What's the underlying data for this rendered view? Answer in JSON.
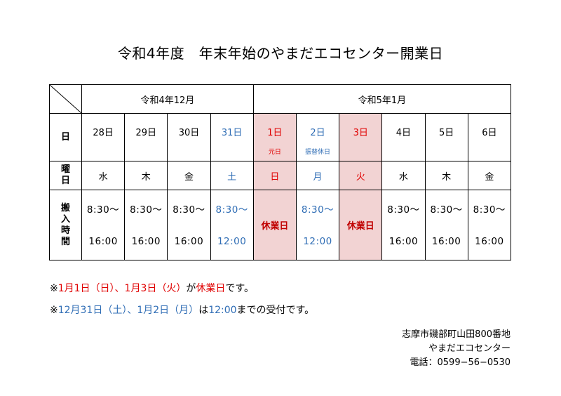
{
  "title": "令和4年度　年末年始のやまだエコセンター開業日",
  "months": [
    "令和4年12月",
    "令和5年1月"
  ],
  "row_labels": {
    "date": "日",
    "dow": "曜日",
    "time": "搬入時間"
  },
  "days": [
    {
      "date": "28日",
      "note": "",
      "dow": "水",
      "time_start": "8:30〜",
      "time_end": "16:00",
      "closed": false,
      "color": "black"
    },
    {
      "date": "29日",
      "note": "",
      "dow": "木",
      "time_start": "8:30〜",
      "time_end": "16:00",
      "closed": false,
      "color": "black"
    },
    {
      "date": "30日",
      "note": "",
      "dow": "金",
      "time_start": "8:30〜",
      "time_end": "16:00",
      "closed": false,
      "color": "black"
    },
    {
      "date": "31日",
      "note": "",
      "dow": "土",
      "time_start": "8:30〜",
      "time_end": "12:00",
      "closed": false,
      "color": "blue"
    },
    {
      "date": "1日",
      "note": "元日",
      "dow": "日",
      "closed_label": "休業日",
      "closed": true,
      "color": "red"
    },
    {
      "date": "2日",
      "note": "振替休日",
      "dow": "月",
      "time_start": "8:30〜",
      "time_end": "12:00",
      "closed": false,
      "color": "blue"
    },
    {
      "date": "3日",
      "note": "",
      "dow": "火",
      "closed_label": "休業日",
      "closed": true,
      "color": "red"
    },
    {
      "date": "4日",
      "note": "",
      "dow": "水",
      "time_start": "8:30〜",
      "time_end": "16:00",
      "closed": false,
      "color": "black"
    },
    {
      "date": "5日",
      "note": "",
      "dow": "木",
      "time_start": "8:30〜",
      "time_end": "16:00",
      "closed": false,
      "color": "black"
    },
    {
      "date": "6日",
      "note": "",
      "dow": "金",
      "time_start": "8:30〜",
      "time_end": "16:00",
      "closed": false,
      "color": "black"
    }
  ],
  "notes": {
    "note1": {
      "mark": "※",
      "dates": "1月1日（日）、1月3日（火）",
      "mid": "が",
      "closed": "休業日",
      "end": "です。"
    },
    "note2": {
      "mark": "※",
      "dates": "12月31日（土）、1月2日（月）",
      "mid": "は",
      "time": "12:00",
      "end": "までの受付です。"
    }
  },
  "contact": {
    "address": "志摩市磯部町山田800番地",
    "name": "やまだエコセンター",
    "phone": "電話：0599−56−0530"
  },
  "colors": {
    "red": "#e00000",
    "blue": "#2f6db5",
    "closed_bg": "#f2d3d3"
  }
}
